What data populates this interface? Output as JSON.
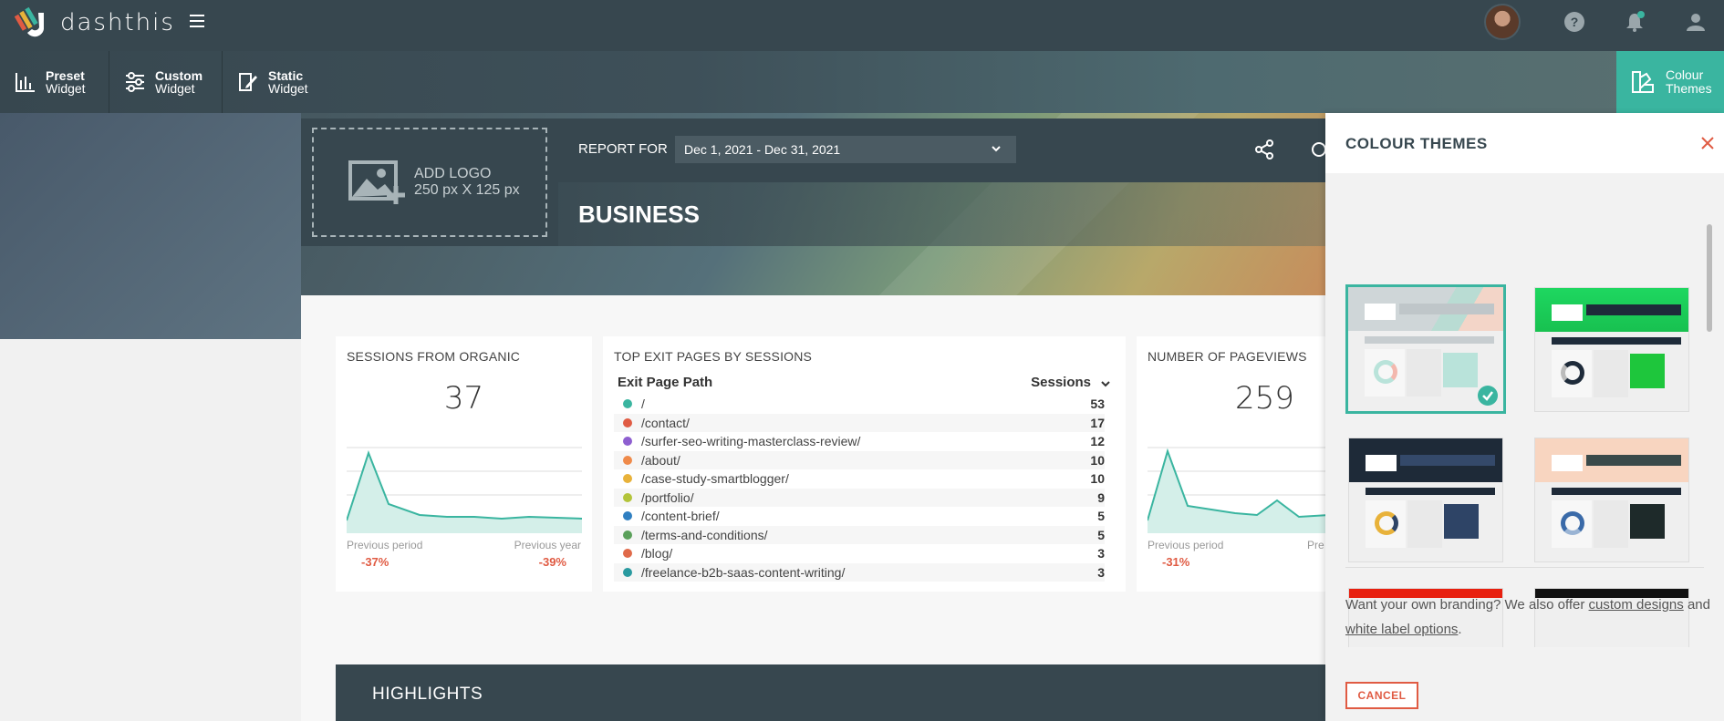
{
  "app": {
    "brand": "dashthis"
  },
  "toolbar": {
    "preset": {
      "line1": "Preset",
      "line2": "Widget"
    },
    "custom": {
      "line1": "Custom",
      "line2": "Widget"
    },
    "static": {
      "line1": "Static",
      "line2": "Widget"
    },
    "colour": {
      "line1": "Colour",
      "line2": "Themes"
    }
  },
  "header": {
    "logo_line1": "ADD LOGO",
    "logo_line2": "250 px X 125 px",
    "report_label": "REPORT FOR",
    "date_range": "Dec 1, 2021 - Dec 31, 2021",
    "title": "BUSINESS"
  },
  "widgets": {
    "organic": {
      "title": "SESSIONS FROM ORGANIC",
      "value": "37",
      "prev_label": "Previous period",
      "prev_value": "-37%",
      "year_label": "Previous year",
      "year_value": "-39%"
    },
    "exit": {
      "title": "TOP EXIT PAGES BY SESSIONS",
      "col1": "Exit Page Path",
      "col2": "Sessions",
      "rows": [
        {
          "path": "/",
          "value": "53",
          "color": "#3ab5a0"
        },
        {
          "path": "/contact/",
          "value": "17",
          "color": "#e05b43"
        },
        {
          "path": "/surfer-seo-writing-masterclass-review/",
          "value": "12",
          "color": "#8e5fd0"
        },
        {
          "path": "/about/",
          "value": "10",
          "color": "#ef8a4a"
        },
        {
          "path": "/case-study-smartblogger/",
          "value": "10",
          "color": "#e8b23a"
        },
        {
          "path": "/portfolio/",
          "value": "9",
          "color": "#b3c43a"
        },
        {
          "path": "/content-brief/",
          "value": "5",
          "color": "#2f7fc1"
        },
        {
          "path": "/terms-and-conditions/",
          "value": "5",
          "color": "#5aa05a"
        },
        {
          "path": "/blog/",
          "value": "3",
          "color": "#e06a4a"
        },
        {
          "path": "/freelance-b2b-saas-content-writing/",
          "value": "3",
          "color": "#2a9aa0"
        }
      ]
    },
    "pageviews": {
      "title": "NUMBER OF PAGEVIEWS",
      "value": "259",
      "prev_label": "Previous period",
      "prev_value": "-31%",
      "year_label": "Pre"
    },
    "highlights": "HIGHLIGHTS"
  },
  "panel": {
    "title": "COLOUR THEMES",
    "branding_text1": "Want your own branding? We also offer",
    "link1": "custom designs",
    "branding_text2": "and",
    "link2": "white label options",
    "branding_end": ".",
    "cancel": "CANCEL"
  },
  "colors": {
    "accent": "#3ab5a0",
    "dark": "#37474f",
    "danger": "#e05b43"
  }
}
